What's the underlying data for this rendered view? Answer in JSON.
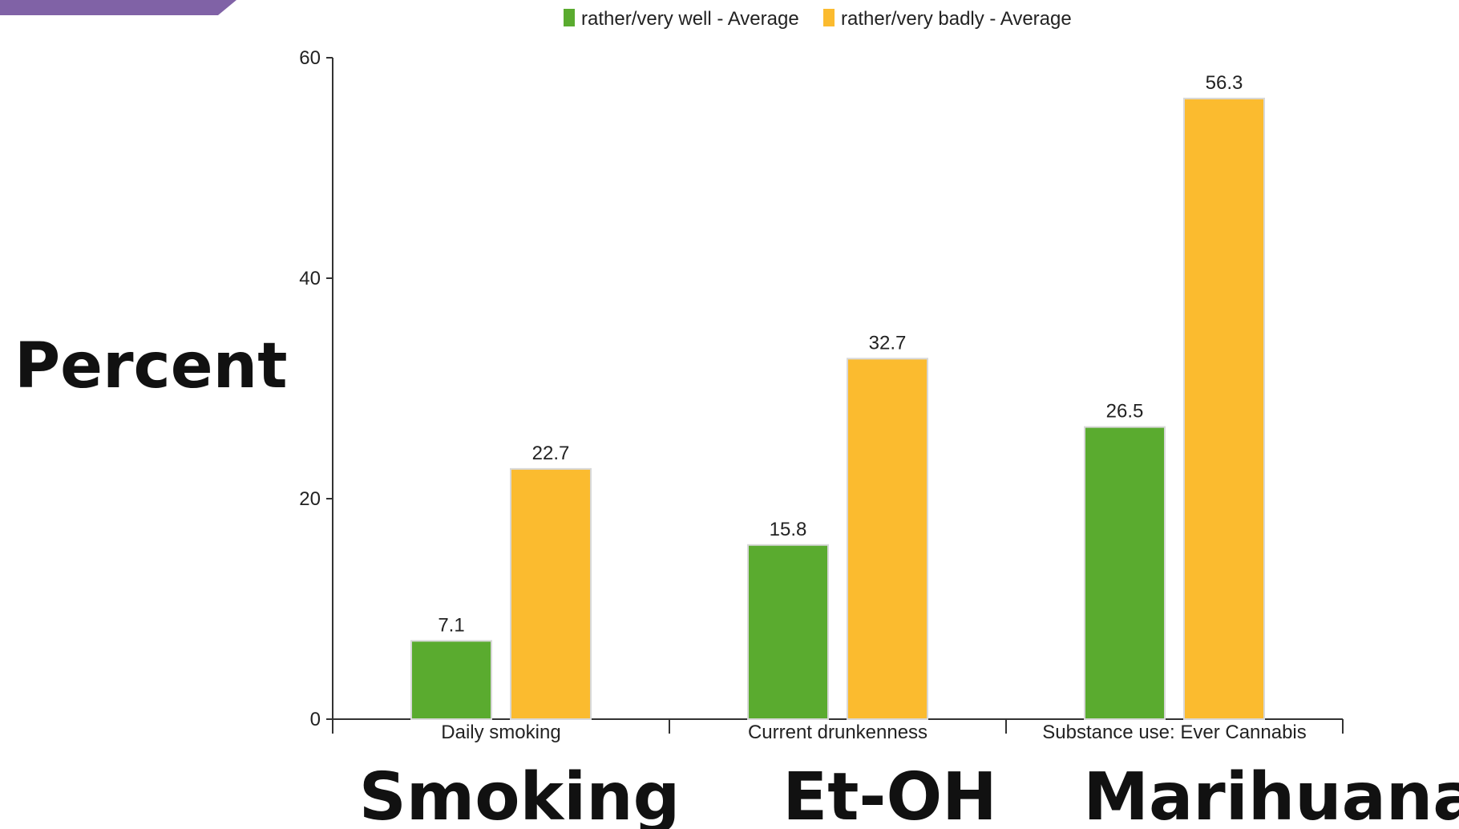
{
  "colors": {
    "banner": "#8062a6",
    "series_well": "#5aab2f",
    "series_badly": "#fbbb2f",
    "axis": "#333333",
    "bar_border": "#d8d8d8"
  },
  "legend": {
    "items": [
      {
        "label": "rather/very well - Average",
        "color_key": "series_well"
      },
      {
        "label": "rather/very badly - Average",
        "color_key": "series_badly"
      }
    ]
  },
  "side_label": "Percent",
  "bottom_labels": [
    "Smoking",
    "Et-OH",
    "Marihuana"
  ],
  "chart_data": {
    "type": "bar",
    "title": "",
    "xlabel": "",
    "ylabel": "",
    "ylim": [
      0,
      60
    ],
    "yticks": [
      0,
      20,
      40,
      60
    ],
    "categories": [
      "Daily smoking",
      "Current drunkenness",
      "Substance use: Ever Cannabis"
    ],
    "series": [
      {
        "name": "rather/very well - Average",
        "values": [
          7.1,
          15.8,
          26.5
        ]
      },
      {
        "name": "rather/very badly - Average",
        "values": [
          22.7,
          32.7,
          56.3
        ]
      }
    ],
    "value_labels": [
      [
        "7.1",
        "15.8",
        "26.5"
      ],
      [
        "22.7",
        "32.7",
        "56.3"
      ]
    ],
    "grid": false,
    "legend_position": "top-center"
  }
}
